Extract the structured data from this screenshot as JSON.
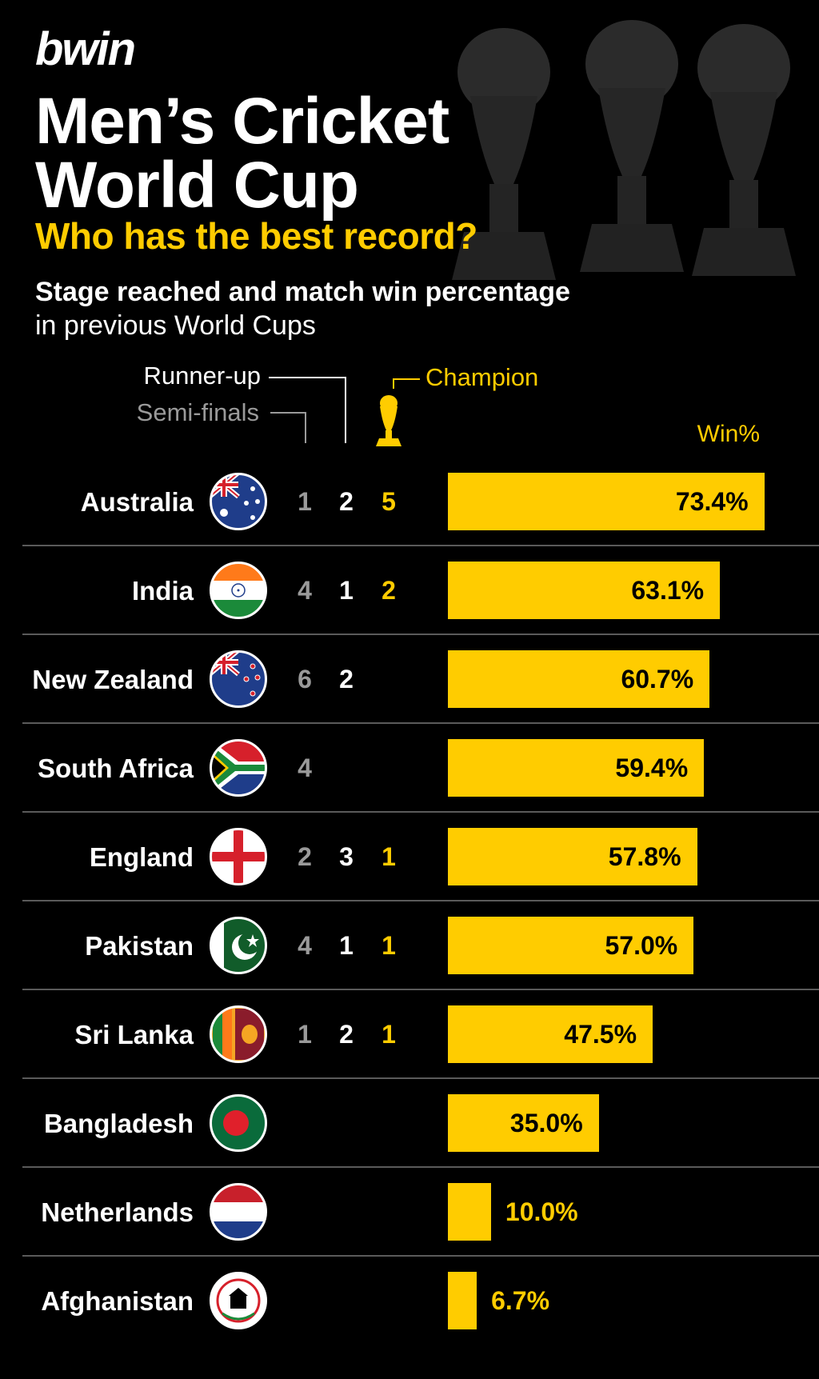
{
  "brand": "bwin",
  "title_line1": "Men’s Cricket",
  "title_line2": "World Cup",
  "subtitle": "Who has the best record?",
  "description_line1": "Stage reached and match win percentage",
  "description_line2": "in previous World Cups",
  "legend": {
    "runner_up": "Runner-up",
    "semi_finals": "Semi-finals",
    "champion": "Champion",
    "win_pct": "Win%"
  },
  "colors": {
    "accent": "#ffcc00",
    "background": "#000000",
    "muted": "#9a9a9a",
    "divider": "#5a5a5a"
  },
  "chart_data": {
    "type": "bar",
    "title": "Men’s Cricket World Cup — Who has the best record?",
    "xlabel": "Win%",
    "xlim": [
      0,
      100
    ],
    "categories": [
      "Australia",
      "India",
      "New Zealand",
      "South Africa",
      "England",
      "Pakistan",
      "Sri Lanka",
      "Bangladesh",
      "Netherlands",
      "Afghanistan"
    ],
    "rows": [
      {
        "country": "Australia",
        "flag": "australia-flag",
        "semi": "1",
        "runner": "2",
        "champ": "5",
        "win": 73.4,
        "win_label": "73.4%"
      },
      {
        "country": "India",
        "flag": "india-flag",
        "semi": "4",
        "runner": "1",
        "champ": "2",
        "win": 63.1,
        "win_label": "63.1%"
      },
      {
        "country": "New Zealand",
        "flag": "new-zealand-flag",
        "semi": "6",
        "runner": "2",
        "champ": "",
        "win": 60.7,
        "win_label": "60.7%"
      },
      {
        "country": "South Africa",
        "flag": "south-africa-flag",
        "semi": "4",
        "runner": "",
        "champ": "",
        "win": 59.4,
        "win_label": "59.4%"
      },
      {
        "country": "England",
        "flag": "england-flag",
        "semi": "2",
        "runner": "3",
        "champ": "1",
        "win": 57.8,
        "win_label": "57.8%"
      },
      {
        "country": "Pakistan",
        "flag": "pakistan-flag",
        "semi": "4",
        "runner": "1",
        "champ": "1",
        "win": 57.0,
        "win_label": "57.0%"
      },
      {
        "country": "Sri Lanka",
        "flag": "sri-lanka-flag",
        "semi": "1",
        "runner": "2",
        "champ": "1",
        "win": 47.5,
        "win_label": "47.5%"
      },
      {
        "country": "Bangladesh",
        "flag": "bangladesh-flag",
        "semi": "",
        "runner": "",
        "champ": "",
        "win": 35.0,
        "win_label": "35.0%"
      },
      {
        "country": "Netherlands",
        "flag": "netherlands-flag",
        "semi": "",
        "runner": "",
        "champ": "",
        "win": 10.0,
        "win_label": "10.0%"
      },
      {
        "country": "Afghanistan",
        "flag": "afghanistan-flag",
        "semi": "",
        "runner": "",
        "champ": "",
        "win": 6.7,
        "win_label": "6.7%"
      }
    ]
  }
}
